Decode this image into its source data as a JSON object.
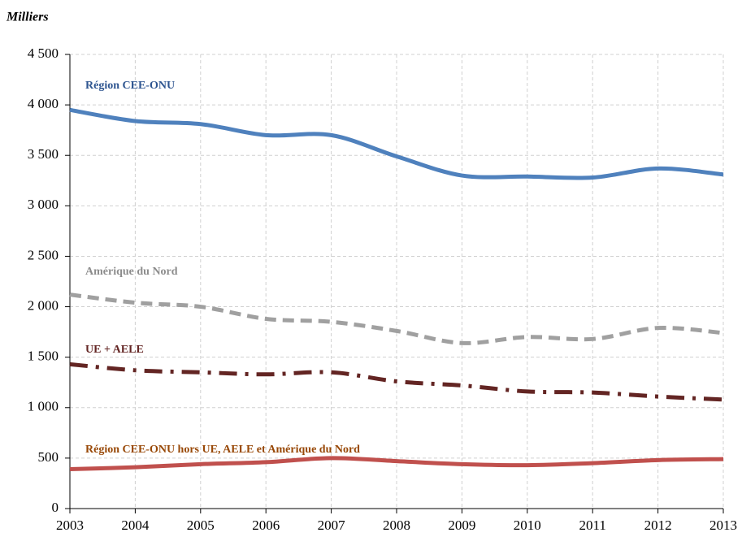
{
  "chart_data": {
    "type": "line",
    "y_axis_label": "Milliers",
    "x": [
      2003,
      2004,
      2005,
      2006,
      2007,
      2008,
      2009,
      2010,
      2011,
      2012,
      2013
    ],
    "xlim": [
      2003,
      2013
    ],
    "xticks": [
      2003,
      2004,
      2005,
      2006,
      2007,
      2008,
      2009,
      2010,
      2011,
      2012,
      2013
    ],
    "ylim": [
      0,
      4500
    ],
    "yticks": [
      0,
      500,
      {
        "value": 1000,
        "label": "1 000"
      },
      {
        "value": 1500,
        "label": "1 500"
      },
      {
        "value": 2000,
        "label": "2 000"
      },
      {
        "value": 2500,
        "label": "2 500"
      },
      {
        "value": 3000,
        "label": "3 000"
      },
      {
        "value": 3500,
        "label": "3 500"
      },
      {
        "value": 4000,
        "label": "4 000"
      },
      {
        "value": 4500,
        "label": "4 500"
      }
    ],
    "grid": true,
    "smooth": true,
    "series": [
      {
        "name": "Région CEE-ONU",
        "color": "#4f81bd",
        "label_color": "#2e5590",
        "line_style": "solid",
        "values": [
          3950,
          3840,
          3810,
          3700,
          3700,
          3490,
          3300,
          3290,
          3280,
          3370,
          3310
        ]
      },
      {
        "name": "Amérique du Nord",
        "color": "#a0a0a0",
        "label_color": "#8c8c8c",
        "line_style": "dashed",
        "values": [
          2120,
          2040,
          2000,
          1880,
          1850,
          1760,
          1640,
          1700,
          1680,
          1790,
          1740
        ]
      },
      {
        "name": "UE + AELE",
        "color": "#632523",
        "label_color": "#632523",
        "line_style": "dashdot",
        "values": [
          1430,
          1370,
          1350,
          1330,
          1350,
          1260,
          1220,
          1160,
          1150,
          1110,
          1080
        ]
      },
      {
        "name": "Région CEE-ONU hors UE, AELE et Amérique du Nord",
        "color": "#c0504d",
        "label_color": "#984807",
        "line_style": "solid",
        "values": [
          390,
          410,
          440,
          460,
          500,
          470,
          440,
          430,
          450,
          480,
          490
        ]
      }
    ]
  }
}
